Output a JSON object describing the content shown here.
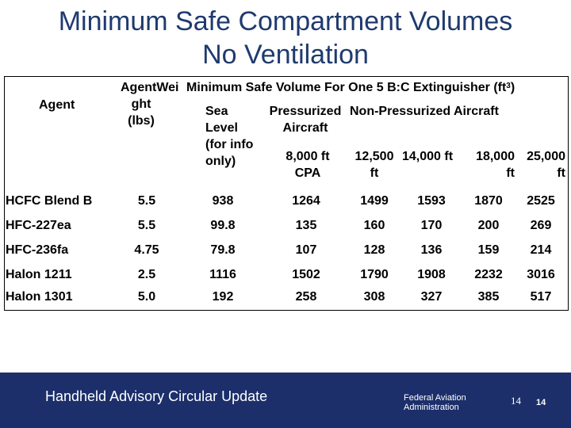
{
  "title": {
    "line1": "Minimum Safe Compartment Volumes",
    "line2": "No Ventilation"
  },
  "table": {
    "header": {
      "agent": "Agent",
      "weight_top": "Agent",
      "weight_mid": "Wei",
      "weight_rest": "ght\n(lbs)",
      "group_title": "Minimum Safe Volume For One 5 B:C Extinguisher (ft",
      "group_sup": "3",
      "group_close": ")",
      "sea_level": "Sea\nLevel\n(for info\nonly)",
      "pressurized": "Pressurized\nAircraft",
      "pressurized_sub": "8,000 ft\nCPA",
      "non_pressurized": "Non-Pressurized Aircraft",
      "alt_12500": "12,500\nft",
      "alt_14000": "14,000 ft",
      "alt_18000": "18,000\nft",
      "alt_25000": "25,000\nft"
    },
    "rows": [
      {
        "agent": "HCFC Blend B",
        "weight": "5.5",
        "sea": "938",
        "p8000": "1264",
        "a12500": "1499",
        "a14000": "1593",
        "a18000": "1870",
        "a25000": "2525"
      },
      {
        "agent": "HFC-227ea",
        "weight": "5.5",
        "sea": "99.8",
        "p8000": "135",
        "a12500": "160",
        "a14000": "170",
        "a18000": "200",
        "a25000": "269"
      },
      {
        "agent": "HFC-236fa",
        "weight": "4.75",
        "sea": "79.8",
        "p8000": "107",
        "a12500": "128",
        "a14000": "136",
        "a18000": "159",
        "a25000": "214"
      },
      {
        "agent": "Halon 1211",
        "weight": "2.5",
        "sea": "1116",
        "p8000": "1502",
        "a12500": "1790",
        "a14000": "1908",
        "a18000": "2232",
        "a25000": "3016"
      },
      {
        "agent": "Halon 1301",
        "weight": "5.0",
        "sea": "192",
        "p8000": "258",
        "a12500": "308",
        "a14000": "327",
        "a18000": "385",
        "a25000": "517"
      }
    ]
  },
  "footer": {
    "text": "Handheld Advisory Circular Update",
    "faa_line1": "Federal Aviation",
    "faa_line2": "Administration",
    "page_a": "14",
    "page_b": "14"
  }
}
